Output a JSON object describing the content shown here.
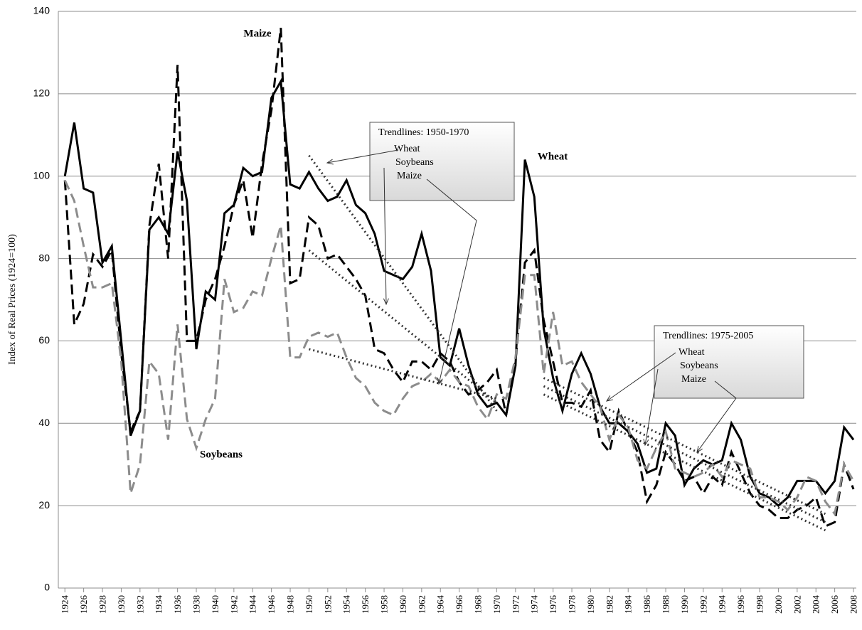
{
  "chart_data": {
    "type": "line",
    "y_label": "Index of Real Prices (1924=100)",
    "x": [
      1924,
      1925,
      1926,
      1927,
      1928,
      1929,
      1930,
      1931,
      1932,
      1933,
      1934,
      1935,
      1936,
      1937,
      1938,
      1939,
      1940,
      1941,
      1942,
      1943,
      1944,
      1945,
      1946,
      1947,
      1948,
      1949,
      1950,
      1951,
      1952,
      1953,
      1954,
      1955,
      1956,
      1957,
      1958,
      1959,
      1960,
      1961,
      1962,
      1963,
      1964,
      1965,
      1966,
      1967,
      1968,
      1969,
      1970,
      1971,
      1972,
      1973,
      1974,
      1975,
      1976,
      1977,
      1978,
      1979,
      1980,
      1981,
      1982,
      1983,
      1984,
      1985,
      1986,
      1987,
      1988,
      1989,
      1990,
      1991,
      1992,
      1993,
      1994,
      1995,
      1996,
      1997,
      1998,
      1999,
      2000,
      2001,
      2002,
      2003,
      2004,
      2005,
      2006,
      2007,
      2008
    ],
    "series": [
      {
        "name": "Wheat",
        "color": "#000000",
        "dash": "solid",
        "values": [
          100,
          113,
          97,
          96,
          79,
          83,
          60,
          37,
          43,
          87,
          90,
          86,
          106,
          94,
          58,
          72,
          70,
          91,
          93,
          102,
          100,
          101,
          119,
          123,
          98,
          97,
          101,
          97,
          94,
          95,
          99,
          93,
          91,
          86,
          77,
          76,
          75,
          78,
          86,
          77,
          56,
          54,
          63,
          54,
          47,
          44,
          45,
          42,
          54,
          104,
          95,
          63,
          51,
          43,
          52,
          57,
          52,
          44,
          40,
          40,
          38,
          35,
          28,
          29,
          40,
          37,
          25,
          29,
          31,
          30,
          31,
          40,
          36,
          27,
          23,
          22,
          20,
          22,
          26,
          26,
          26,
          23,
          26,
          39,
          36
        ]
      },
      {
        "name": "Maize",
        "color": "#000000",
        "dash": "dashed",
        "values": [
          99,
          64,
          69,
          81,
          78,
          82,
          57,
          38,
          43,
          88,
          103,
          80,
          127,
          60,
          60,
          70,
          75,
          83,
          93,
          99,
          85,
          103,
          116,
          136,
          74,
          75,
          90,
          88,
          80,
          81,
          78,
          75,
          71,
          58,
          57,
          53,
          50,
          55,
          55,
          53,
          57,
          55,
          50,
          47,
          48,
          50,
          53,
          42,
          55,
          79,
          82,
          65,
          55,
          45,
          45,
          44,
          48,
          36,
          33,
          43,
          38,
          33,
          21,
          25,
          33,
          30,
          26,
          27,
          23,
          27,
          25,
          33,
          28,
          23,
          20,
          19,
          17,
          17,
          19,
          20,
          22,
          15,
          16,
          30,
          24
        ]
      },
      {
        "name": "Soybeans",
        "color": "#8c8c8c",
        "dash": "dashed",
        "values": [
          99,
          94,
          83,
          73,
          73,
          74,
          55,
          23,
          30,
          55,
          52,
          36,
          64,
          41,
          34,
          41,
          46,
          75,
          67,
          68,
          72,
          71,
          80,
          88,
          56,
          56,
          61,
          62,
          61,
          62,
          56,
          51,
          49,
          45,
          43,
          42,
          46,
          49,
          50,
          52,
          50,
          53,
          50,
          49,
          44,
          41,
          47,
          46,
          56,
          76,
          76,
          52,
          67,
          54,
          55,
          50,
          47,
          44,
          36,
          42,
          39,
          31,
          29,
          34,
          38,
          29,
          28,
          27,
          28,
          30,
          27,
          31,
          30,
          29,
          22,
          22,
          21,
          19,
          22,
          27,
          26,
          21,
          18,
          30,
          26
        ]
      }
    ],
    "trendlines": [
      {
        "title": "Trendlines: 1950-1970",
        "x": [
          1950,
          1970
        ],
        "lines": [
          {
            "name": "Wheat",
            "values": [
              105,
              43
            ]
          },
          {
            "name": "Soybeans",
            "values": [
              58,
              46
            ]
          },
          {
            "name": "Maize",
            "values": [
              82,
              45
            ]
          }
        ]
      },
      {
        "title": "Trendlines: 1975-2005",
        "x": [
          1975,
          2005
        ],
        "lines": [
          {
            "name": "Wheat",
            "values": [
              51,
              18
            ]
          },
          {
            "name": "Soybeans",
            "values": [
              49,
              16
            ]
          },
          {
            "name": "Maize",
            "values": [
              47,
              14
            ]
          }
        ]
      }
    ],
    "trendline_color": "#333333",
    "xlim": [
      1923.3,
      2008.3
    ],
    "xticks": [
      1924,
      1926,
      1928,
      1930,
      1932,
      1934,
      1936,
      1938,
      1940,
      1942,
      1944,
      1946,
      1948,
      1950,
      1952,
      1954,
      1956,
      1958,
      1960,
      1962,
      1964,
      1966,
      1968,
      1970,
      1972,
      1974,
      1976,
      1978,
      1980,
      1982,
      1984,
      1986,
      1988,
      1990,
      1992,
      1994,
      1996,
      1998,
      2000,
      2002,
      2004,
      2006,
      2008
    ],
    "ylim": [
      0,
      140
    ],
    "yticks": [
      0,
      20,
      40,
      60,
      80,
      100,
      120,
      140
    ],
    "grid": true
  }
}
